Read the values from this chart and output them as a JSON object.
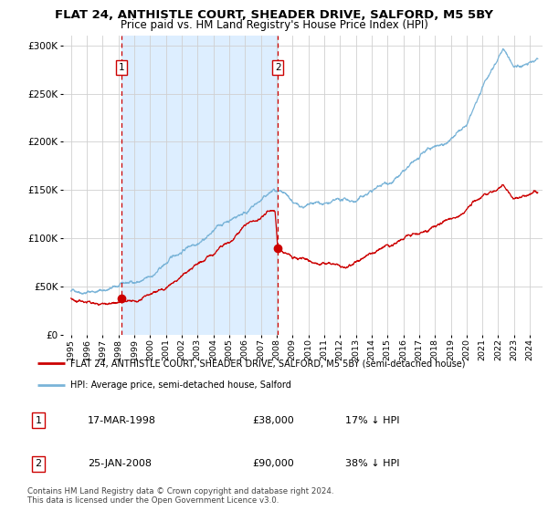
{
  "title": "FLAT 24, ANTHISTLE COURT, SHEADER DRIVE, SALFORD, M5 5BY",
  "subtitle": "Price paid vs. HM Land Registry's House Price Index (HPI)",
  "ylabel_ticks": [
    "£0",
    "£50K",
    "£100K",
    "£150K",
    "£200K",
    "£250K",
    "£300K"
  ],
  "ytick_values": [
    0,
    50000,
    100000,
    150000,
    200000,
    250000,
    300000
  ],
  "ylim": [
    0,
    310000
  ],
  "hpi_color": "#7ab4d8",
  "price_color": "#cc0000",
  "bg_shaded_color": "#ddeeff",
  "vline_color": "#cc0000",
  "purchase1_date": 1998.21,
  "purchase1_price": 38000,
  "purchase2_date": 2008.07,
  "purchase2_price": 90000,
  "legend_label1": "FLAT 24, ANTHISTLE COURT, SHEADER DRIVE, SALFORD, M5 5BY (semi-detached house)",
  "legend_label2": "HPI: Average price, semi-detached house, Salford",
  "table_row1": [
    "1",
    "17-MAR-1998",
    "£38,000",
    "17% ↓ HPI"
  ],
  "table_row2": [
    "2",
    "25-JAN-2008",
    "£90,000",
    "38% ↓ HPI"
  ],
  "footnote": "Contains HM Land Registry data © Crown copyright and database right 2024.\nThis data is licensed under the Open Government Licence v3.0.",
  "title_fontsize": 9.5,
  "subtitle_fontsize": 8.5,
  "tick_fontsize": 7.5,
  "legend_fontsize": 7.5,
  "table_fontsize": 8
}
